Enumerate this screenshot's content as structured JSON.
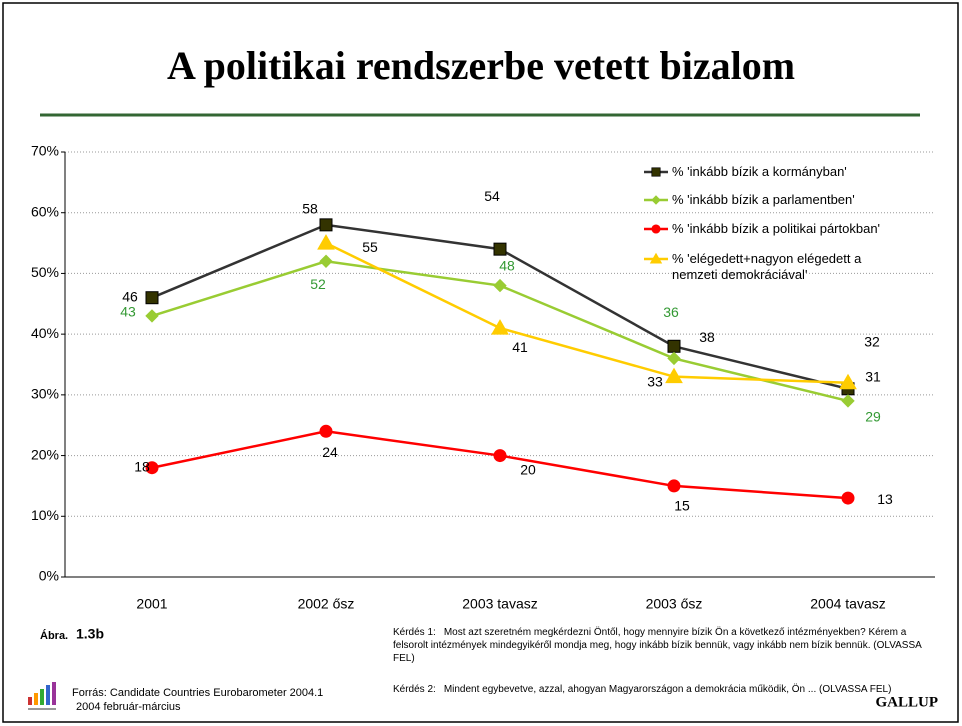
{
  "chart_data": {
    "type": "line",
    "title": "A politikai rendszerbe vetett bizalom",
    "categories": [
      "2001",
      "2002 ősz",
      "2003 tavasz",
      "2003 ősz",
      "2004 tavasz"
    ],
    "series": [
      {
        "name": "% 'inkább bízik a kormányban'",
        "color": "#333333",
        "marker": "square",
        "marker_color": "#333300",
        "label_color": "#000000",
        "values": [
          46,
          58,
          54,
          38,
          31
        ]
      },
      {
        "name": "% 'inkább bízik a parlamentben'",
        "color": "#99cc33",
        "marker": "diamond",
        "marker_color": "#99cc33",
        "label_color": "#339933",
        "values": [
          43,
          52,
          48,
          36,
          29
        ]
      },
      {
        "name": "% 'inkább bízik a politikai pártokban'",
        "color": "#ff0000",
        "marker": "circle",
        "marker_color": "#ff0000",
        "label_color": "#000000",
        "values": [
          18,
          24,
          20,
          15,
          13
        ]
      },
      {
        "name": "% 'elégedett+nagyon elégedett a nemzeti demokráciával'",
        "color": "#ffcc00",
        "marker": "triangle",
        "marker_color": "#ffcc00",
        "label_color": "#000000",
        "values": [
          null,
          55,
          41,
          33,
          32
        ]
      }
    ],
    "ylim": [
      0,
      70
    ],
    "yticks": [
      {
        "value": 0,
        "label": "0%"
      },
      {
        "value": 10,
        "label": "10%"
      },
      {
        "value": 20,
        "label": "20%"
      },
      {
        "value": 30,
        "label": "30%"
      },
      {
        "value": 40,
        "label": "40%"
      },
      {
        "value": 50,
        "label": "50%"
      },
      {
        "value": 60,
        "label": "60%"
      },
      {
        "value": 70,
        "label": "70%"
      }
    ],
    "grid": true,
    "legend": "top-right",
    "figure_label": "Ábra.",
    "figure_number": "1.3b",
    "source": "Forrás: Candidate Countries Eurobarometer 2004.1",
    "source_date": "2004 február-március",
    "notes": [
      {
        "label": "Kérdés 1:",
        "text": "Most azt szeretném megkérdezni Öntől, hogy mennyire bízik Ön a következő intézményekben? Kérem a felsorolt intézmények mindegyikéről mondja meg, hogy inkább bízik bennük, vagy inkább nem bízik bennük. (OLVASSA FEL)"
      },
      {
        "label": "Kérdés 2:",
        "text": "Mindent egybevetve, azzal, ahogyan Magyarországon a demokrácia működik, Ön ... (OLVASSA FEL)"
      }
    ],
    "brand": "GALLUP"
  }
}
